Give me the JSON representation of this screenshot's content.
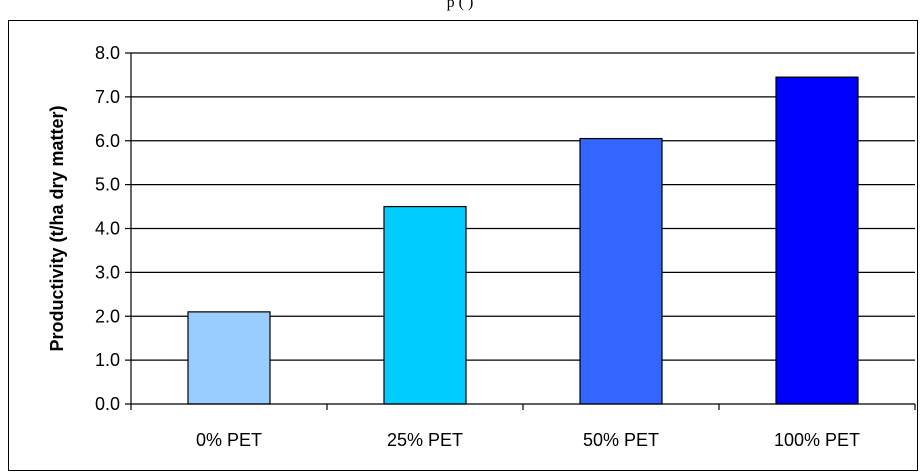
{
  "caption": "p                                                                        (                                                                  )",
  "chart_data": {
    "type": "bar",
    "categories": [
      "0% PET",
      "25% PET",
      "50% PET",
      "100% PET"
    ],
    "values": [
      2.1,
      4.5,
      6.05,
      7.45
    ],
    "ylabel": "Productivity (t/ha dry matter)",
    "xlabel": "",
    "ylim": [
      0,
      8
    ],
    "yticks": [
      "0.0",
      "1.0",
      "2.0",
      "3.0",
      "4.0",
      "5.0",
      "6.0",
      "7.0",
      "8.0"
    ],
    "bar_colors": [
      "#99ccff",
      "#00ccff",
      "#3366ff",
      "#0000ff"
    ],
    "gridlines": true,
    "legend": "none"
  }
}
